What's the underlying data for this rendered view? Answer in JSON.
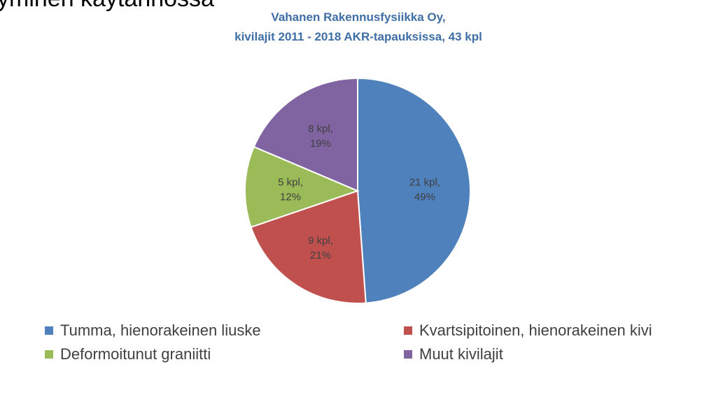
{
  "slide": {
    "heading": "yminen käytännössä"
  },
  "chart_data": {
    "type": "pie",
    "title": "Vahanen Rakennusfysiikka Oy,",
    "subtitle": "kivilajit 2011 - 2018 AKR-tapauksissa, 43 kpl",
    "start_angle_deg": 0,
    "direction": "clockwise",
    "slices": [
      {
        "name": "Tumma, hienorakeinen liuske",
        "value": 21,
        "label_line1": "21 kpl,",
        "label_line2": "49%",
        "color": "#4f81bd"
      },
      {
        "name": "Kvartsipitoinen, hienorakeinen kivi",
        "value": 9,
        "label_line1": "9 kpl,",
        "label_line2": "21%",
        "color": "#c0504d"
      },
      {
        "name": "Deformoitunut graniitti",
        "value": 5,
        "label_line1": "5 kpl,",
        "label_line2": "12%",
        "color": "#9bbb59"
      },
      {
        "name": "Muut kivilajit",
        "value": 8,
        "label_line1": "8 kpl,",
        "label_line2": "19%",
        "color": "#8064a2"
      }
    ],
    "legend_position": "bottom"
  }
}
